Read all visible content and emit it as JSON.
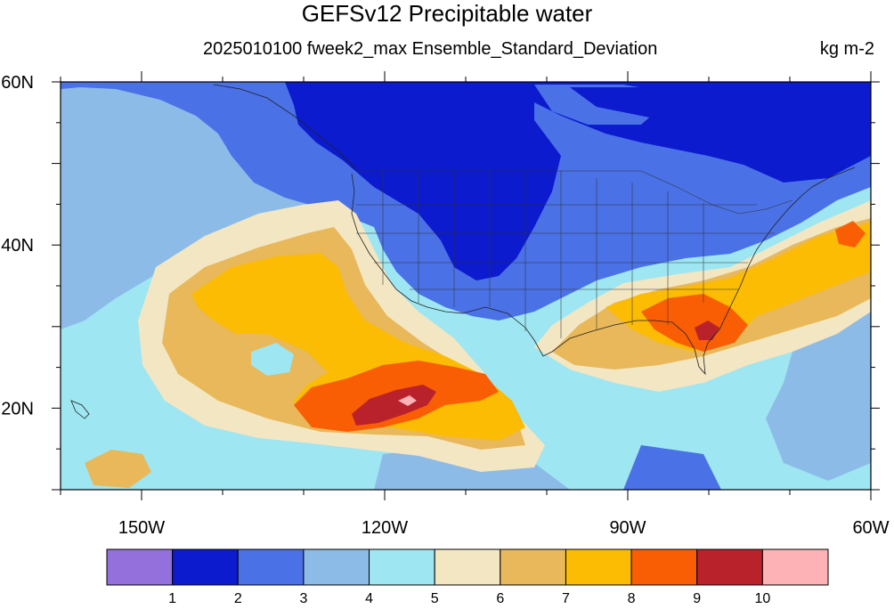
{
  "figure": {
    "title": "GEFSv12 Precipitable water",
    "subtitle": "2025010100 fweek2_max Ensemble_Standard_Deviation",
    "units": "kg m-2"
  },
  "map": {
    "projection": "cylindrical equidistant",
    "lon_range": [
      -160,
      -60
    ],
    "lat_range": [
      10,
      60
    ],
    "lat_labels": [
      {
        "lat": 60,
        "text": "60N"
      },
      {
        "lat": 40,
        "text": "40N"
      },
      {
        "lat": 20,
        "text": "20N"
      }
    ],
    "lon_labels": [
      {
        "lon": -150,
        "text": "150W"
      },
      {
        "lon": -120,
        "text": "120W"
      },
      {
        "lon": -90,
        "text": "90W"
      },
      {
        "lon": -60,
        "text": "60W"
      }
    ],
    "fields": [
      {
        "region": "central North America and Hudson Bay",
        "level": 1
      },
      {
        "region": "northern US and Canada",
        "level": 2
      },
      {
        "region": "northern Pacific",
        "level": 3
      },
      {
        "region": "subtropical eastern Pacific",
        "level": 5
      },
      {
        "region": "eastern Pacific off Baja",
        "level": 7
      },
      {
        "region": "eastern Pacific maximum near 20N 115W",
        "level": 9
      },
      {
        "region": "southeastern US and Florida",
        "level": 8
      },
      {
        "region": "western Atlantic",
        "level": 7
      }
    ]
  },
  "colorbar": {
    "colors": [
      "#9370db",
      "#0b1bcd",
      "#4a71e6",
      "#8dbbe8",
      "#9ee6f2",
      "#f3e6c2",
      "#e8b85a",
      "#fbbc03",
      "#f95e04",
      "#b9222a",
      "#fdb2b5"
    ],
    "labels": [
      "1",
      "2",
      "3",
      "4",
      "5",
      "6",
      "7",
      "8",
      "9",
      "10"
    ]
  }
}
